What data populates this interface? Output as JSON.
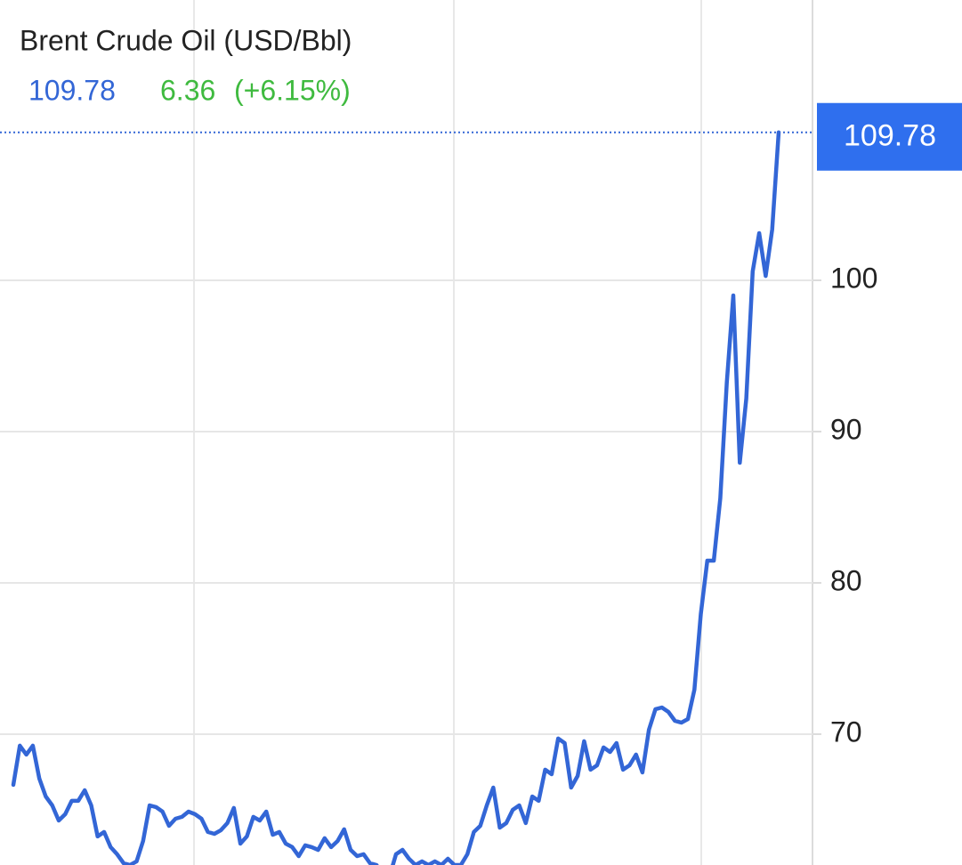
{
  "chart_data": {
    "type": "line",
    "title": "Brent Crude Oil (USD/Bbl)",
    "price": 109.78,
    "change": 6.36,
    "change_percent": "(+6.15%)",
    "series": [
      {
        "name": "Brent Crude Oil",
        "color": "#3366d6",
        "values": [
          66.65,
          69.24,
          68.65,
          69.24,
          67.06,
          65.88,
          65.29,
          64.29,
          64.71,
          65.59,
          65.59,
          66.29,
          65.29,
          63.24,
          63.53,
          62.53,
          62.06,
          61.47,
          61.35,
          61.59,
          62.94,
          65.29,
          65.18,
          64.88,
          63.94,
          64.41,
          64.53,
          64.88,
          64.71,
          64.41,
          63.53,
          63.41,
          63.65,
          64.12,
          65.12,
          62.76,
          63.24,
          64.53,
          64.29,
          64.88,
          63.35,
          63.53,
          62.76,
          62.53,
          61.94,
          62.65,
          62.53,
          62.35,
          63.12,
          62.53,
          62.94,
          63.71,
          62.35,
          61.94,
          62.06,
          61.47,
          61.35,
          60.59,
          60.6,
          62.06,
          62.35,
          61.76,
          61.35,
          61.59,
          61.35,
          61.59,
          61.35,
          61.76,
          61.35,
          61.35,
          62.06,
          63.53,
          63.94,
          65.29,
          66.47,
          63.82,
          64.12,
          65,
          65.29,
          64.12,
          65.88,
          65.59,
          67.65,
          67.35,
          69.71,
          69.41,
          66.47,
          67.24,
          69.53,
          67.65,
          67.94,
          69.12,
          68.82,
          69.41,
          67.65,
          67.94,
          68.65,
          67.47,
          70.29,
          71.65,
          71.76,
          71.47,
          70.88,
          70.76,
          71,
          72.94,
          77.94,
          81.47,
          81.47,
          85.59,
          93.24,
          99,
          87.94,
          92.18,
          100.59,
          103.12,
          100.29,
          103.35,
          109.78
        ]
      }
    ],
    "ylim": [
      61.35,
      118.53
    ],
    "yticks": [
      70,
      80,
      90,
      100
    ],
    "grid": true
  }
}
